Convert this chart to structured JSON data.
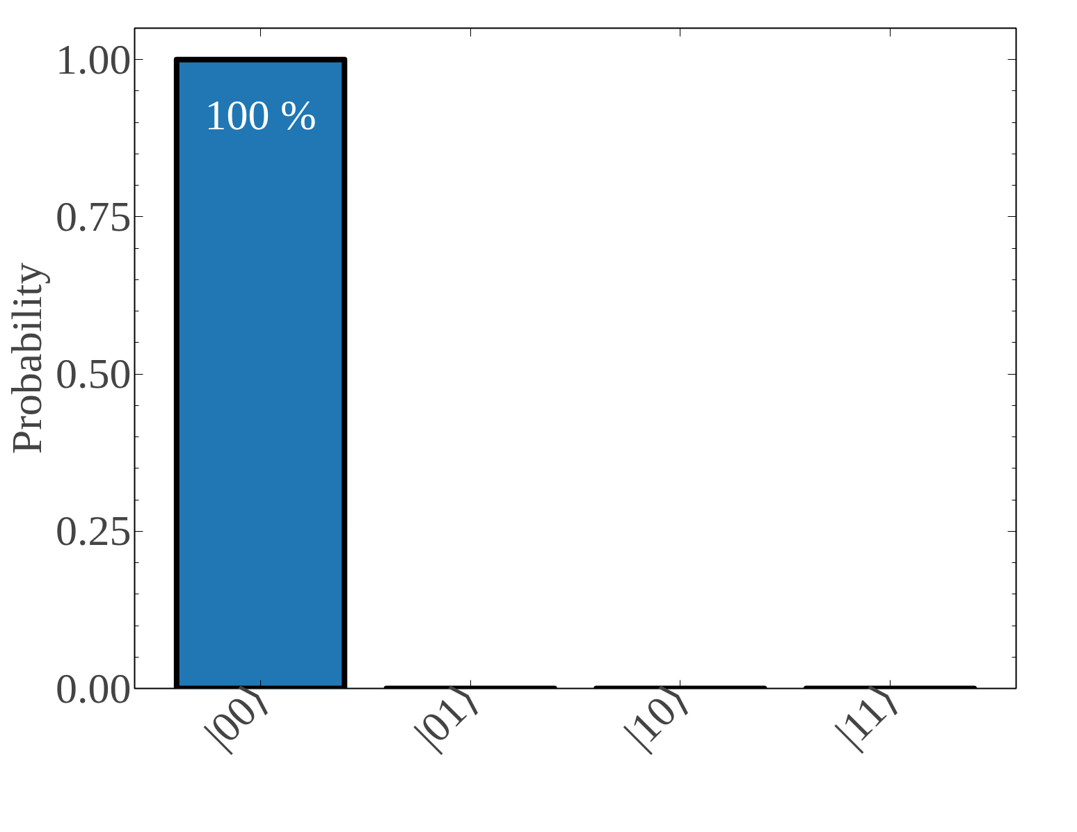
{
  "chart_data": {
    "type": "bar",
    "ylabel": "Probability",
    "categories": [
      "|00⟩",
      "|01⟩",
      "|10⟩",
      "|11⟩"
    ],
    "values": [
      1.0,
      0,
      0,
      0
    ],
    "value_labels": [
      "100 %",
      null,
      null,
      null
    ],
    "color": "#2077b4",
    "ylim": [
      0,
      1.05
    ],
    "yticks": [
      {
        "value": 0,
        "label": "0.00"
      },
      {
        "value": 0.25,
        "label": "0.25"
      },
      {
        "value": 0.5,
        "label": "0.50"
      },
      {
        "value": 0.75,
        "label": "0.75"
      },
      {
        "value": 1.0,
        "label": "1.00"
      }
    ],
    "grid": false
  }
}
